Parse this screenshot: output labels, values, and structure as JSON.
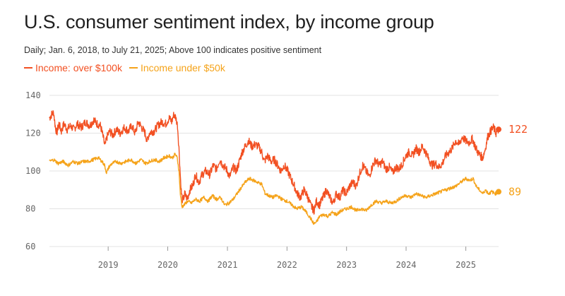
{
  "chart_data": {
    "type": "line",
    "title": "U.S. consumer sentiment index, by income group",
    "subtitle": "Daily; Jan. 6, 2018, to July 21, 2025; Above 100 indicates positive sentiment",
    "ylim": [
      60,
      140
    ],
    "xlim": [
      "2018-01-06",
      "2025-07-21"
    ],
    "yticks": [
      "60",
      "80",
      "100",
      "120",
      "140"
    ],
    "xticks": [
      "2019",
      "2020",
      "2021",
      "2022",
      "2023",
      "2024",
      "2025"
    ],
    "grid": true,
    "legend_position": "top-left",
    "colors": {
      "high": "#f25022",
      "low": "#f5a31a",
      "grid": "#e3e3e3",
      "axis_text": "#666666"
    },
    "series": [
      {
        "name": "Income: over $100k",
        "end_label": "122",
        "color": "#f25022",
        "points": [
          [
            "2018-01-06",
            128
          ],
          [
            "2018-01-20",
            130
          ],
          [
            "2018-02-01",
            131
          ],
          [
            "2018-02-10",
            124
          ],
          [
            "2018-02-20",
            120
          ],
          [
            "2018-03-05",
            125
          ],
          [
            "2018-03-20",
            121
          ],
          [
            "2018-04-05",
            125
          ],
          [
            "2018-04-25",
            122
          ],
          [
            "2018-05-15",
            124
          ],
          [
            "2018-06-05",
            122
          ],
          [
            "2018-06-25",
            125
          ],
          [
            "2018-07-20",
            123
          ],
          [
            "2018-08-15",
            126
          ],
          [
            "2018-09-10",
            124
          ],
          [
            "2018-10-05",
            127
          ],
          [
            "2018-10-25",
            125
          ],
          [
            "2018-11-15",
            124
          ],
          [
            "2018-12-01",
            118
          ],
          [
            "2018-12-12",
            113
          ],
          [
            "2018-12-25",
            118
          ],
          [
            "2019-01-10",
            121
          ],
          [
            "2019-01-30",
            119
          ],
          [
            "2019-02-20",
            122
          ],
          [
            "2019-03-15",
            120
          ],
          [
            "2019-04-10",
            123
          ],
          [
            "2019-05-05",
            121
          ],
          [
            "2019-05-25",
            124
          ],
          [
            "2019-06-15",
            120
          ],
          [
            "2019-07-05",
            126
          ],
          [
            "2019-07-25",
            123
          ],
          [
            "2019-08-15",
            120
          ],
          [
            "2019-08-28",
            116
          ],
          [
            "2019-09-10",
            120
          ],
          [
            "2019-09-25",
            121
          ],
          [
            "2019-10-10",
            121
          ],
          [
            "2019-11-01",
            124
          ],
          [
            "2019-11-25",
            126
          ],
          [
            "2019-12-20",
            125
          ],
          [
            "2020-01-10",
            128
          ],
          [
            "2020-01-25",
            126
          ],
          [
            "2020-02-08",
            130
          ],
          [
            "2020-02-20",
            128
          ],
          [
            "2020-03-01",
            124
          ],
          [
            "2020-03-10",
            112
          ],
          [
            "2020-03-18",
            98
          ],
          [
            "2020-03-25",
            88
          ],
          [
            "2020-04-02",
            84
          ],
          [
            "2020-04-15",
            88
          ],
          [
            "2020-04-30",
            85
          ],
          [
            "2020-05-15",
            90
          ],
          [
            "2020-06-01",
            92
          ],
          [
            "2020-06-20",
            98
          ],
          [
            "2020-07-10",
            94
          ],
          [
            "2020-07-30",
            98
          ],
          [
            "2020-08-20",
            100
          ],
          [
            "2020-09-15",
            98
          ],
          [
            "2020-10-05",
            103
          ],
          [
            "2020-10-25",
            101
          ],
          [
            "2020-11-15",
            106
          ],
          [
            "2020-12-05",
            103
          ],
          [
            "2020-12-25",
            101
          ],
          [
            "2021-01-15",
            97
          ],
          [
            "2021-02-05",
            102
          ],
          [
            "2021-02-25",
            100
          ],
          [
            "2021-03-15",
            105
          ],
          [
            "2021-04-01",
            110
          ],
          [
            "2021-04-20",
            113
          ],
          [
            "2021-05-10",
            116
          ],
          [
            "2021-05-30",
            113
          ],
          [
            "2021-06-20",
            114
          ],
          [
            "2021-07-10",
            113
          ],
          [
            "2021-07-30",
            110
          ],
          [
            "2021-08-15",
            105
          ],
          [
            "2021-09-05",
            108
          ],
          [
            "2021-09-25",
            105
          ],
          [
            "2021-10-15",
            106
          ],
          [
            "2021-11-05",
            103
          ],
          [
            "2021-11-25",
            100
          ],
          [
            "2021-12-15",
            103
          ],
          [
            "2022-01-05",
            100
          ],
          [
            "2022-01-25",
            96
          ],
          [
            "2022-02-15",
            92
          ],
          [
            "2022-03-05",
            88
          ],
          [
            "2022-03-25",
            86
          ],
          [
            "2022-04-15",
            90
          ],
          [
            "2022-05-05",
            87
          ],
          [
            "2022-05-25",
            82
          ],
          [
            "2022-06-15",
            79
          ],
          [
            "2022-07-01",
            84
          ],
          [
            "2022-07-20",
            82
          ],
          [
            "2022-08-10",
            86
          ],
          [
            "2022-08-30",
            90
          ],
          [
            "2022-09-20",
            86
          ],
          [
            "2022-10-10",
            83
          ],
          [
            "2022-10-30",
            88
          ],
          [
            "2022-11-20",
            86
          ],
          [
            "2022-12-10",
            90
          ],
          [
            "2022-12-30",
            88
          ],
          [
            "2023-01-20",
            92
          ],
          [
            "2023-02-10",
            94
          ],
          [
            "2023-03-01",
            92
          ],
          [
            "2023-03-20",
            98
          ],
          [
            "2023-04-10",
            103
          ],
          [
            "2023-04-30",
            100
          ],
          [
            "2023-05-20",
            97
          ],
          [
            "2023-06-10",
            103
          ],
          [
            "2023-06-30",
            106
          ],
          [
            "2023-07-20",
            103
          ],
          [
            "2023-08-10",
            105
          ],
          [
            "2023-08-30",
            101
          ],
          [
            "2023-09-20",
            102
          ],
          [
            "2023-10-10",
            99
          ],
          [
            "2023-10-30",
            102
          ],
          [
            "2023-11-20",
            101
          ],
          [
            "2023-12-10",
            104
          ],
          [
            "2023-12-30",
            108
          ],
          [
            "2024-01-20",
            110
          ],
          [
            "2024-02-10",
            108
          ],
          [
            "2024-03-01",
            112
          ],
          [
            "2024-03-20",
            110
          ],
          [
            "2024-04-10",
            113
          ],
          [
            "2024-04-30",
            110
          ],
          [
            "2024-05-20",
            106
          ],
          [
            "2024-06-10",
            103
          ],
          [
            "2024-06-30",
            104
          ],
          [
            "2024-07-20",
            102
          ],
          [
            "2024-08-10",
            104
          ],
          [
            "2024-08-30",
            108
          ],
          [
            "2024-09-20",
            110
          ],
          [
            "2024-10-10",
            112
          ],
          [
            "2024-10-30",
            116
          ],
          [
            "2024-11-20",
            114
          ],
          [
            "2024-12-10",
            118
          ],
          [
            "2024-12-30",
            116
          ],
          [
            "2025-01-20",
            115
          ],
          [
            "2025-02-10",
            117
          ],
          [
            "2025-02-28",
            113
          ],
          [
            "2025-03-15",
            110
          ],
          [
            "2025-04-01",
            108
          ],
          [
            "2025-04-15",
            107
          ],
          [
            "2025-05-01",
            112
          ],
          [
            "2025-05-15",
            118
          ],
          [
            "2025-06-01",
            121
          ],
          [
            "2025-06-20",
            123
          ],
          [
            "2025-07-05",
            120
          ],
          [
            "2025-07-21",
            122
          ]
        ]
      },
      {
        "name": "Income under $50k",
        "end_label": "89",
        "color": "#f5a31a",
        "points": [
          [
            "2018-01-06",
            105
          ],
          [
            "2018-02-01",
            106
          ],
          [
            "2018-03-01",
            104
          ],
          [
            "2018-04-01",
            105
          ],
          [
            "2018-05-01",
            103
          ],
          [
            "2018-06-01",
            105
          ],
          [
            "2018-07-01",
            104
          ],
          [
            "2018-08-01",
            105
          ],
          [
            "2018-09-01",
            105
          ],
          [
            "2018-10-01",
            106
          ],
          [
            "2018-11-01",
            107
          ],
          [
            "2018-11-25",
            105
          ],
          [
            "2018-12-10",
            103
          ],
          [
            "2018-12-22",
            99
          ],
          [
            "2019-01-05",
            102
          ],
          [
            "2019-01-25",
            104
          ],
          [
            "2019-02-20",
            105
          ],
          [
            "2019-03-20",
            104
          ],
          [
            "2019-04-20",
            105
          ],
          [
            "2019-05-20",
            106
          ],
          [
            "2019-06-20",
            104
          ],
          [
            "2019-07-20",
            106
          ],
          [
            "2019-08-20",
            104
          ],
          [
            "2019-09-10",
            105
          ],
          [
            "2019-10-10",
            106
          ],
          [
            "2019-11-10",
            105
          ],
          [
            "2019-12-10",
            107
          ],
          [
            "2020-01-10",
            108
          ],
          [
            "2020-01-30",
            107
          ],
          [
            "2020-02-15",
            109
          ],
          [
            "2020-02-28",
            107
          ],
          [
            "2020-03-10",
            100
          ],
          [
            "2020-03-18",
            88
          ],
          [
            "2020-03-28",
            81
          ],
          [
            "2020-04-10",
            82
          ],
          [
            "2020-05-01",
            84
          ],
          [
            "2020-05-25",
            83
          ],
          [
            "2020-06-20",
            85
          ],
          [
            "2020-07-15",
            84
          ],
          [
            "2020-08-10",
            86
          ],
          [
            "2020-09-05",
            84
          ],
          [
            "2020-10-01",
            87
          ],
          [
            "2020-10-25",
            85
          ],
          [
            "2020-11-20",
            86
          ],
          [
            "2020-12-15",
            82
          ],
          [
            "2021-01-10",
            83
          ],
          [
            "2021-02-05",
            85
          ],
          [
            "2021-03-01",
            88
          ],
          [
            "2021-03-25",
            91
          ],
          [
            "2021-04-20",
            94
          ],
          [
            "2021-05-15",
            96
          ],
          [
            "2021-06-10",
            95
          ],
          [
            "2021-07-05",
            94
          ],
          [
            "2021-07-30",
            93
          ],
          [
            "2021-08-20",
            88
          ],
          [
            "2021-09-10",
            87
          ],
          [
            "2021-10-05",
            86
          ],
          [
            "2021-11-01",
            87
          ],
          [
            "2021-12-01",
            85
          ],
          [
            "2022-01-01",
            84
          ],
          [
            "2022-02-01",
            82
          ],
          [
            "2022-03-01",
            80
          ],
          [
            "2022-04-01",
            81
          ],
          [
            "2022-05-01",
            78
          ],
          [
            "2022-05-25",
            75
          ],
          [
            "2022-06-15",
            72
          ],
          [
            "2022-07-01",
            73
          ],
          [
            "2022-07-20",
            76
          ],
          [
            "2022-08-15",
            77
          ],
          [
            "2022-09-10",
            76
          ],
          [
            "2022-10-05",
            78
          ],
          [
            "2022-11-01",
            77
          ],
          [
            "2022-12-01",
            79
          ],
          [
            "2023-01-01",
            80
          ],
          [
            "2023-02-01",
            81
          ],
          [
            "2023-03-01",
            79
          ],
          [
            "2023-04-01",
            80
          ],
          [
            "2023-05-01",
            79
          ],
          [
            "2023-06-01",
            82
          ],
          [
            "2023-07-01",
            84
          ],
          [
            "2023-08-01",
            83
          ],
          [
            "2023-09-01",
            84
          ],
          [
            "2023-10-01",
            83
          ],
          [
            "2023-11-01",
            84
          ],
          [
            "2023-12-01",
            86
          ],
          [
            "2024-01-01",
            87
          ],
          [
            "2024-02-01",
            86
          ],
          [
            "2024-03-01",
            88
          ],
          [
            "2024-04-01",
            87
          ],
          [
            "2024-05-01",
            86
          ],
          [
            "2024-06-01",
            87
          ],
          [
            "2024-07-01",
            88
          ],
          [
            "2024-08-01",
            89
          ],
          [
            "2024-09-01",
            90
          ],
          [
            "2024-10-01",
            91
          ],
          [
            "2024-11-01",
            92
          ],
          [
            "2024-12-01",
            94
          ],
          [
            "2025-01-01",
            96
          ],
          [
            "2025-01-25",
            95
          ],
          [
            "2025-02-15",
            96
          ],
          [
            "2025-03-05",
            92
          ],
          [
            "2025-03-25",
            90
          ],
          [
            "2025-04-15",
            88
          ],
          [
            "2025-05-01",
            90
          ],
          [
            "2025-05-20",
            88
          ],
          [
            "2025-06-10",
            89
          ],
          [
            "2025-07-01",
            88
          ],
          [
            "2025-07-21",
            89
          ]
        ]
      }
    ]
  }
}
